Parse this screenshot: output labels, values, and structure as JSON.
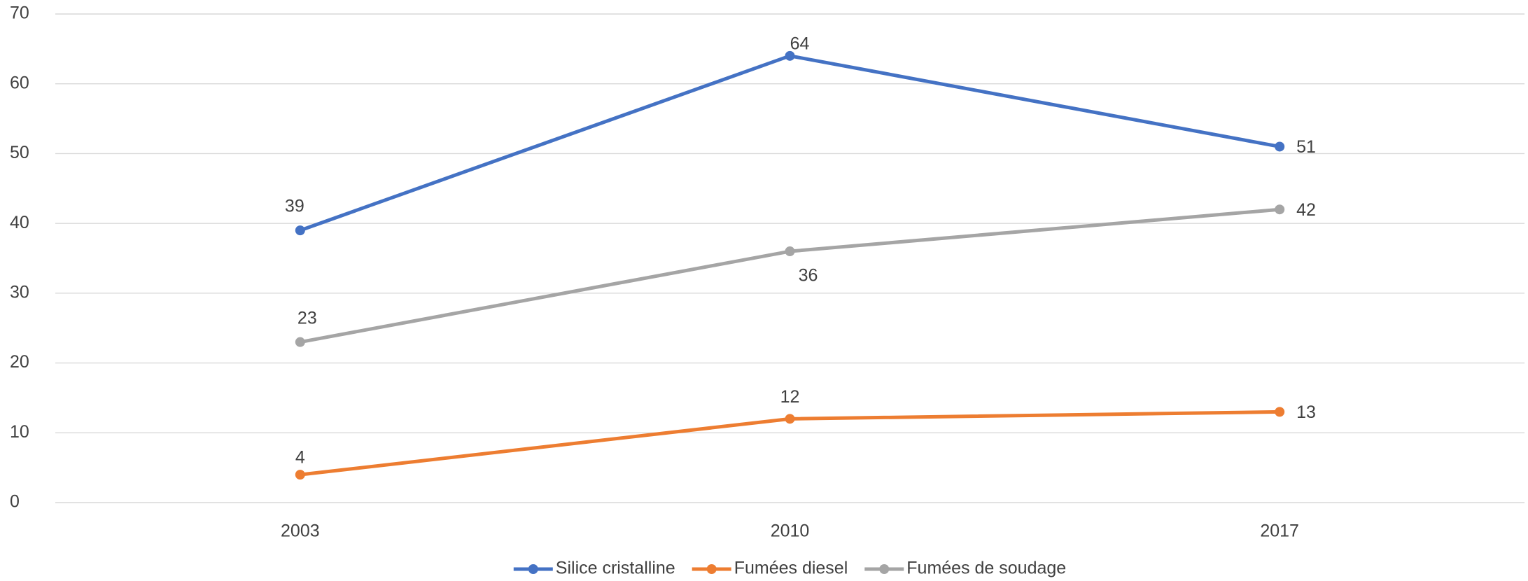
{
  "chart_data": {
    "type": "line",
    "categories": [
      "2003",
      "2010",
      "2017"
    ],
    "series": [
      {
        "name": "Silice cristalline",
        "color": "#4472c4",
        "values": [
          39,
          64,
          51
        ]
      },
      {
        "name": "Fumées diesel",
        "color": "#ed7d31",
        "values": [
          4,
          12,
          13
        ]
      },
      {
        "name": "Fumées de soudage",
        "color": "#a5a5a5",
        "values": [
          23,
          36,
          42
        ]
      }
    ],
    "ylim": [
      0,
      70
    ],
    "yticks": [
      0,
      10,
      20,
      30,
      40,
      50,
      60,
      70
    ],
    "grid": true,
    "legend": "bottom"
  }
}
